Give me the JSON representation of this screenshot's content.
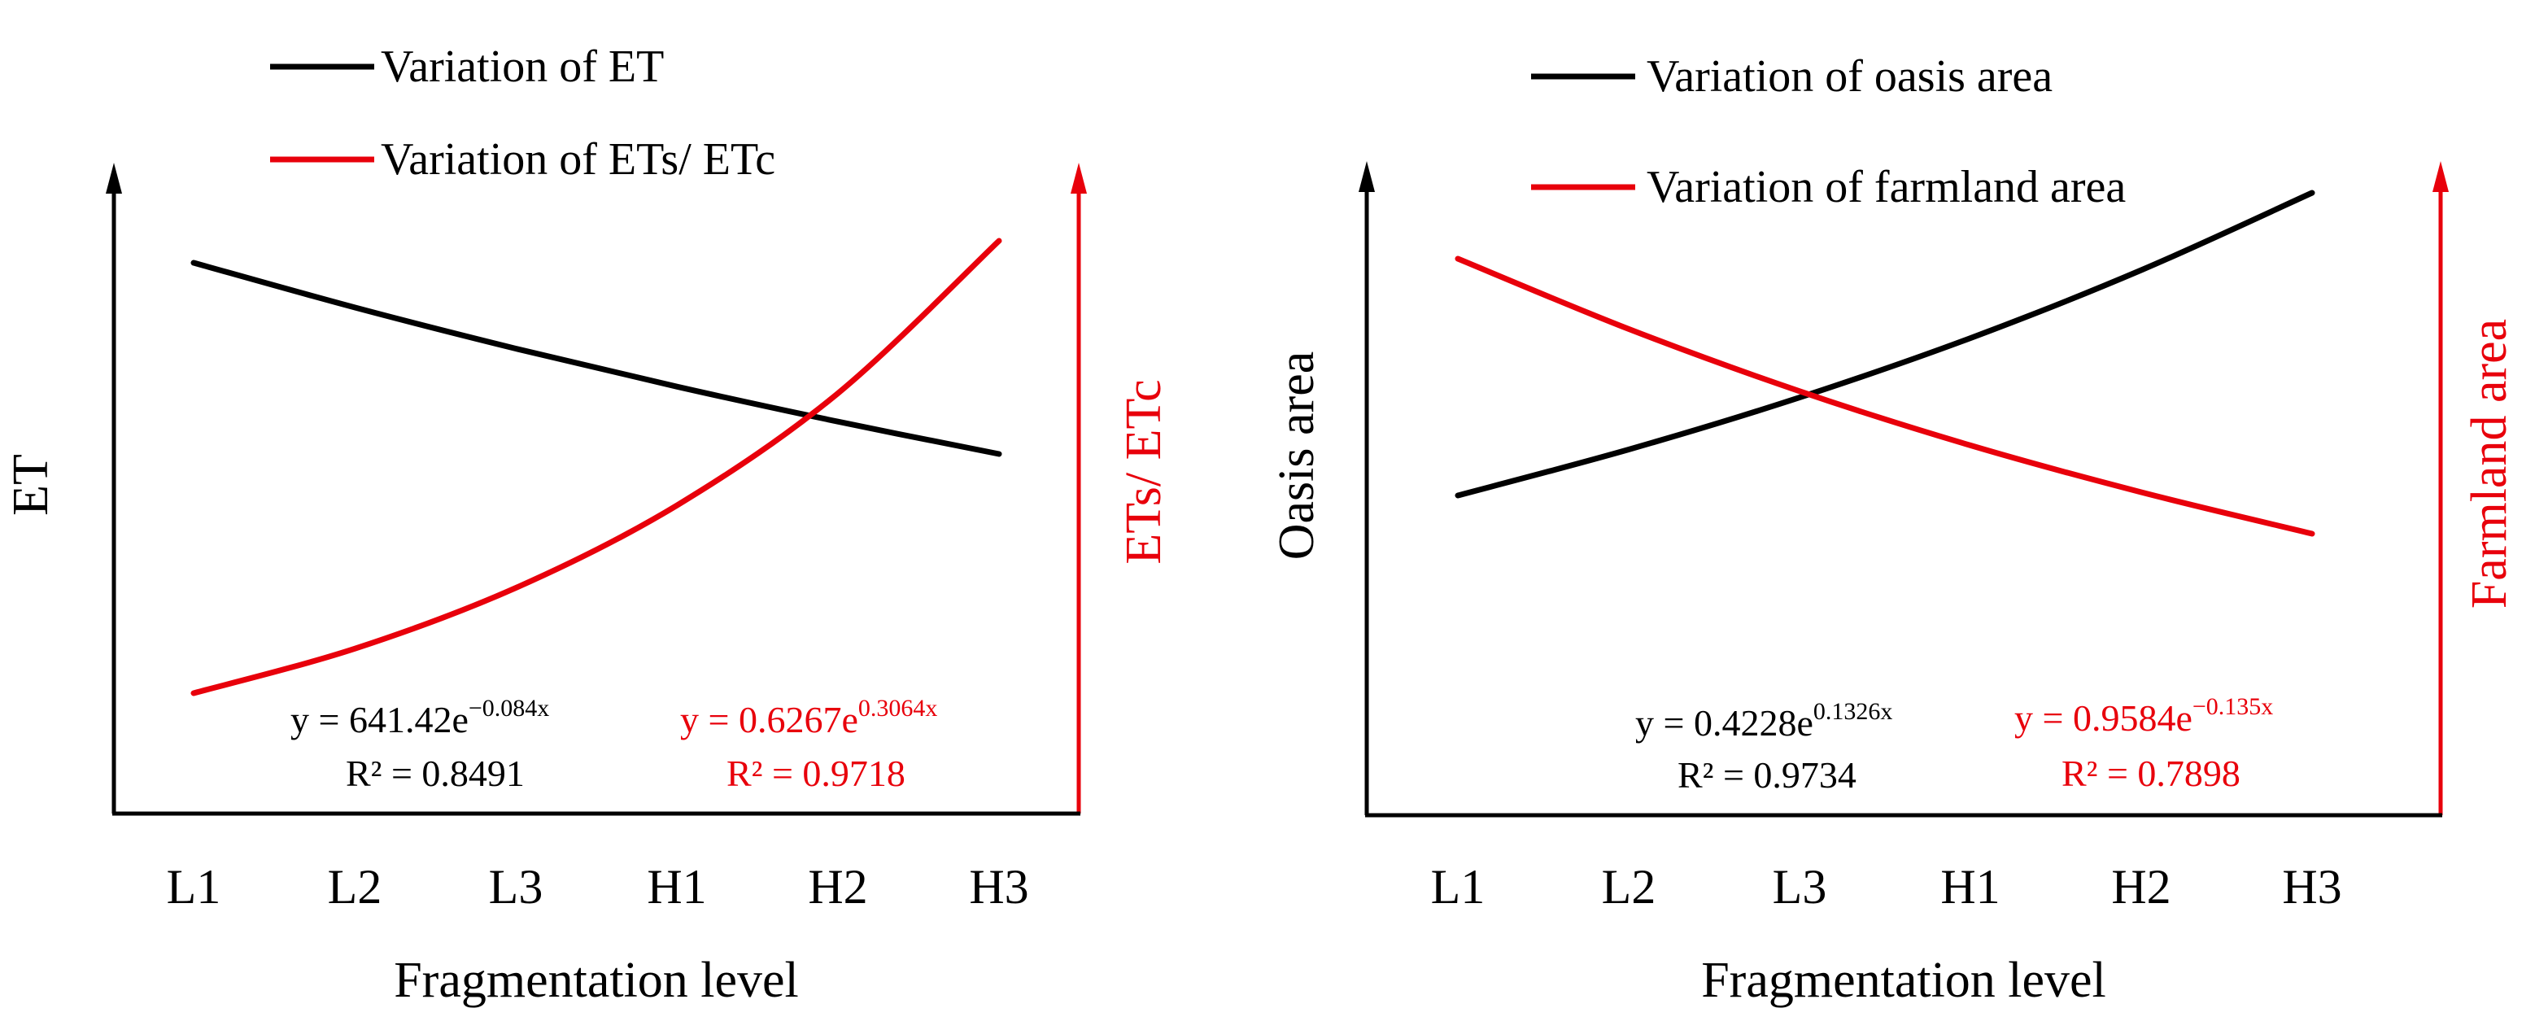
{
  "chart_data": [
    {
      "type": "line",
      "title": "",
      "xlabel": "Fragmentation level",
      "ylabel": "ET",
      "ylabel_right": "ETs/ ETc",
      "categories": [
        "L1",
        "L2",
        "L3",
        "H1",
        "H2",
        "H3"
      ],
      "x": [
        1,
        2,
        3,
        4,
        5,
        6
      ],
      "axes_style": "arrowed, no tick values, no grid",
      "series": [
        {
          "name": "Variation of ET",
          "axis": "left",
          "color": "#000000",
          "equation": "y = 641.42e^(−0.084x)",
          "equation_label": "y = 641.42e",
          "equation_exp": "−0.084x",
          "r2_label": "R² = 0.8491",
          "values": [
            591.7,
            545.9,
            503.7,
            464.7,
            428.8,
            395.6
          ]
        },
        {
          "name": "Variation of ETs/ ETc",
          "axis": "right",
          "color": "#e8000b",
          "equation": "y = 0.6267e^(0.3064x)",
          "equation_label": "y = 0.6267e",
          "equation_exp": "0.3064x",
          "r2_label": "R² = 0.9718",
          "values": [
            0.852,
            1.157,
            1.573,
            2.138,
            2.906,
            3.95
          ]
        }
      ],
      "legend": {
        "position": "top"
      }
    },
    {
      "type": "line",
      "title": "",
      "xlabel": "Fragmentation level",
      "ylabel": "Oasis area",
      "ylabel_right": "Farmland area",
      "categories": [
        "L1",
        "L2",
        "L3",
        "H1",
        "H2",
        "H3"
      ],
      "x": [
        1,
        2,
        3,
        4,
        5,
        6
      ],
      "axes_style": "arrowed, no tick values, no grid",
      "series": [
        {
          "name": "Variation of oasis area",
          "axis": "left",
          "color": "#000000",
          "equation": "y = 0.4228e^(0.1326x)",
          "equation_label": "y = 0.4228e",
          "equation_exp": "0.1326x",
          "r2_label": "R² = 0.9734",
          "values": [
            0.482,
            0.551,
            0.629,
            0.718,
            0.82,
            0.936
          ]
        },
        {
          "name": "Variation of farmland area",
          "axis": "right",
          "color": "#e8000b",
          "equation": "y = 0.9584e^(−0.135x)",
          "equation_label": "y = 0.9584e",
          "equation_exp": "−0.135x",
          "r2_label": "R² = 0.7898",
          "values": [
            0.837,
            0.732,
            0.639,
            0.558,
            0.488,
            0.426
          ]
        }
      ],
      "legend": {
        "position": "top"
      }
    }
  ]
}
